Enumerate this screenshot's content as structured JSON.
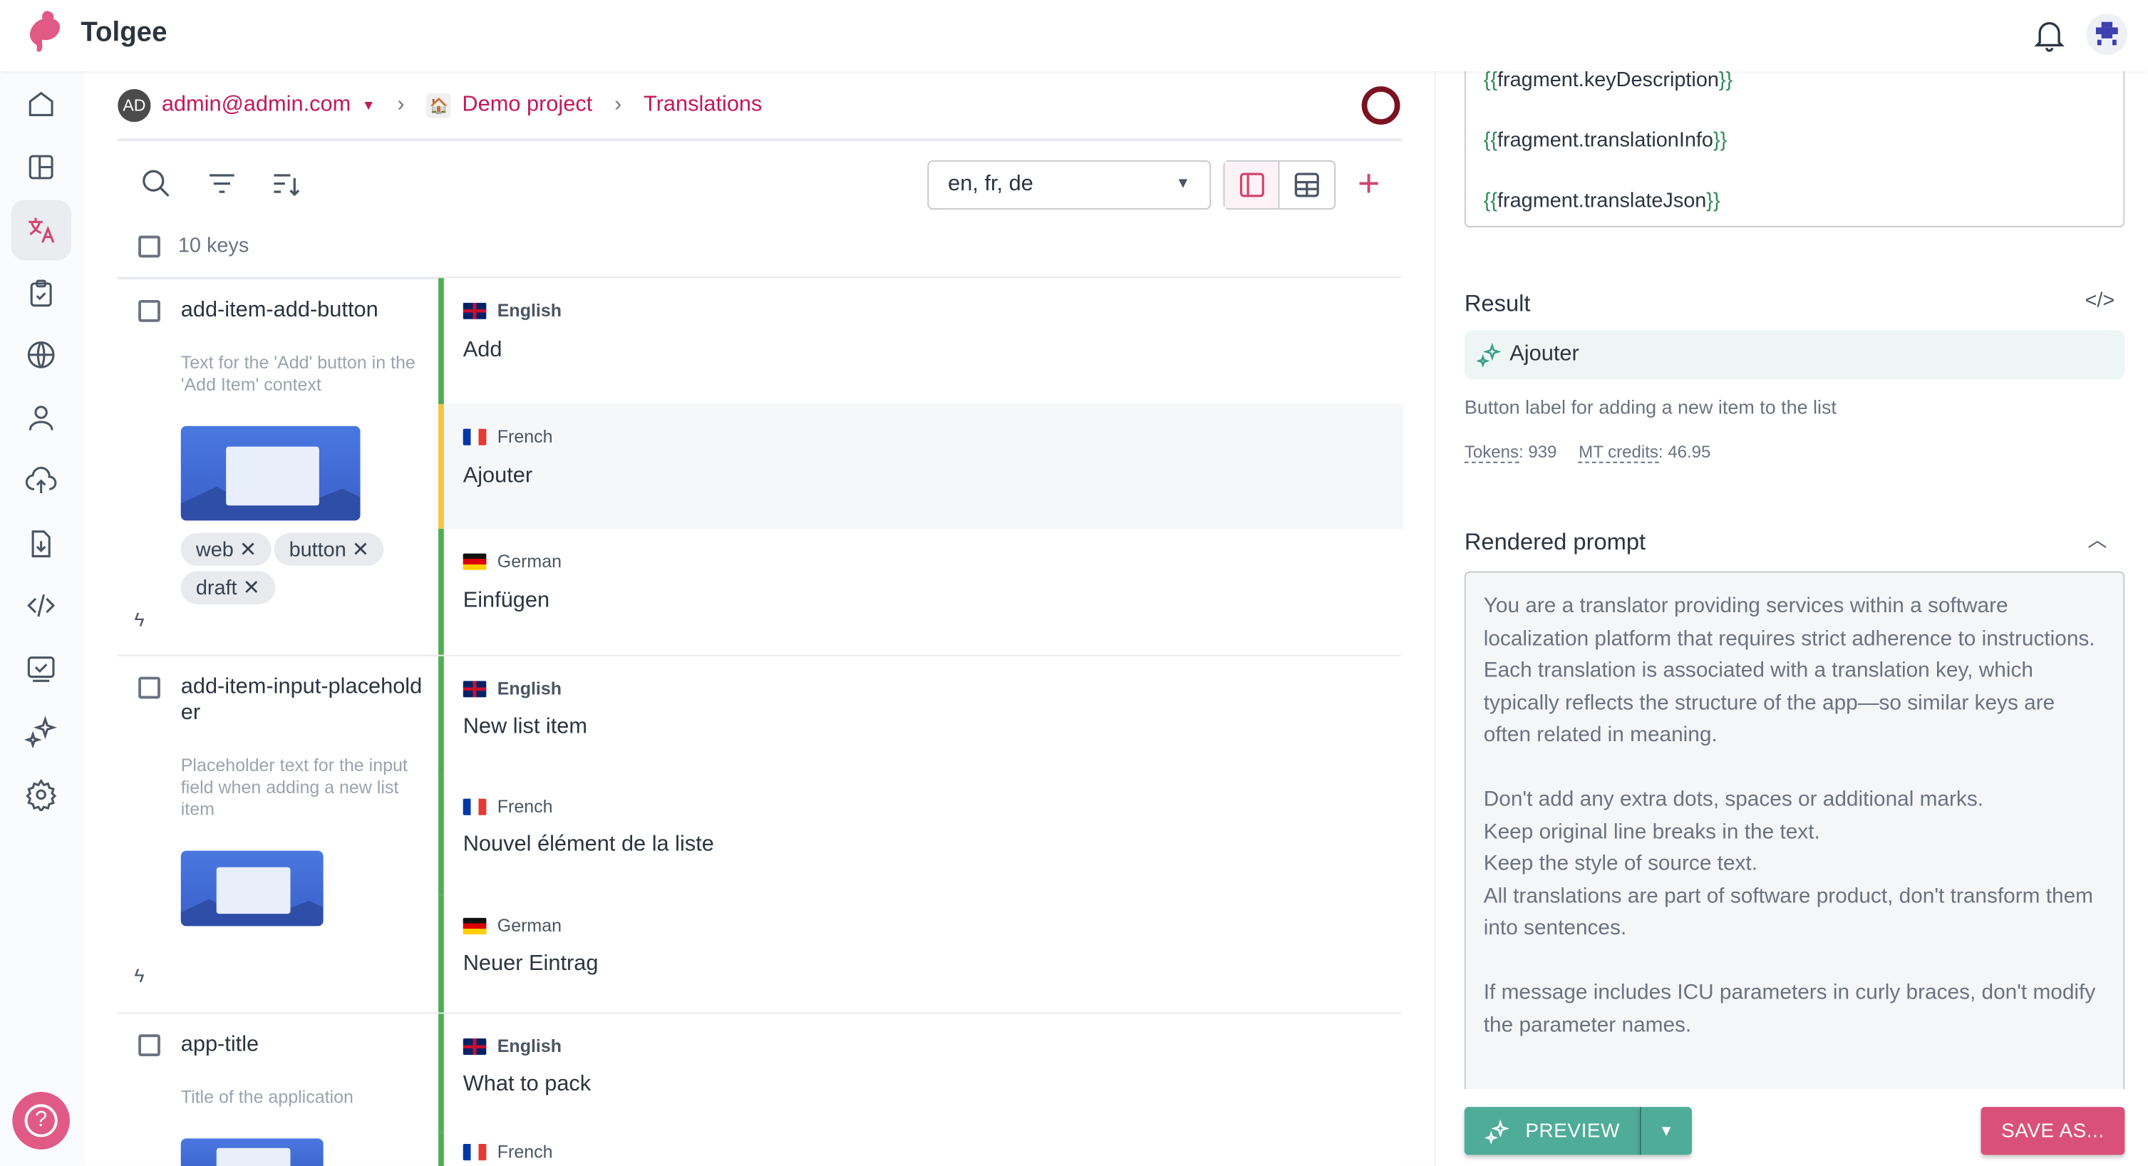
{
  "app": {
    "name": "Tolgee",
    "brand_color": "#d0466f"
  },
  "breadcrumb": {
    "avatar": "AD",
    "user": "admin@admin.com",
    "project": "Demo project",
    "page": "Translations"
  },
  "toolbar": {
    "languages": "en, fr, de",
    "keys_count": "10 keys"
  },
  "sidebar": {
    "items": [
      "home-icon",
      "dashboard-icon",
      "translate-icon",
      "tasks-icon",
      "languages-icon",
      "members-icon",
      "import-icon",
      "export-icon",
      "developer-icon",
      "integrate-icon",
      "ai-icon",
      "settings-icon"
    ],
    "active": "translate-icon"
  },
  "keys": [
    {
      "name": "add-item-add-button",
      "description": "Text for the 'Add' button in the 'Add Item' context",
      "tags": [
        "web",
        "button",
        "draft"
      ],
      "translations": [
        {
          "lang": "English",
          "text": "Add"
        },
        {
          "lang": "French",
          "text": "Ajouter"
        },
        {
          "lang": "German",
          "text": "Einfügen"
        }
      ]
    },
    {
      "name": "add-item-input-placeholder",
      "description": "Placeholder text for the input field when adding a new list item",
      "tags": [],
      "translations": [
        {
          "lang": "English",
          "text": "New list item"
        },
        {
          "lang": "French",
          "text": "Nouvel élément de la liste"
        },
        {
          "lang": "German",
          "text": "Neuer Eintrag"
        }
      ]
    },
    {
      "name": "app-title",
      "description": "Title of the application",
      "tags": [],
      "translations": [
        {
          "lang": "English",
          "text": "What to pack"
        },
        {
          "lang": "French",
          "text": ""
        }
      ]
    }
  ],
  "panel": {
    "fragments": [
      "{{fragment.keyDescription}}",
      "{{fragment.translationInfo}}",
      "{{fragment.translateJson}}"
    ],
    "result_title": "Result",
    "result_text": "Ajouter",
    "result_description": "Button label for adding a new item to the list",
    "tokens_label": "Tokens",
    "tokens": "939",
    "credits_label": "MT credits",
    "credits": "46.95",
    "rendered_prompt_title": "Rendered prompt",
    "rendered_prompt": "You are a translator providing services within a software localization platform that requires strict adherence to instructions.\nEach translation is associated with a translation key, which typically reflects the structure of the app—so similar keys are often related in meaning.\n\nDon't add any extra dots, spaces or additional marks.\nKeep original line breaks in the text.\nKeep the style of source text.\nAll translations are part of software product, don't transform them into sentences.\n\nIf message includes ICU parameters in curly braces, don't modify the parameter names.",
    "preview_label": "PREVIEW",
    "save_label": "SAVE AS...",
    "preview_color": "#4fac99",
    "save_color": "#d9507a"
  }
}
